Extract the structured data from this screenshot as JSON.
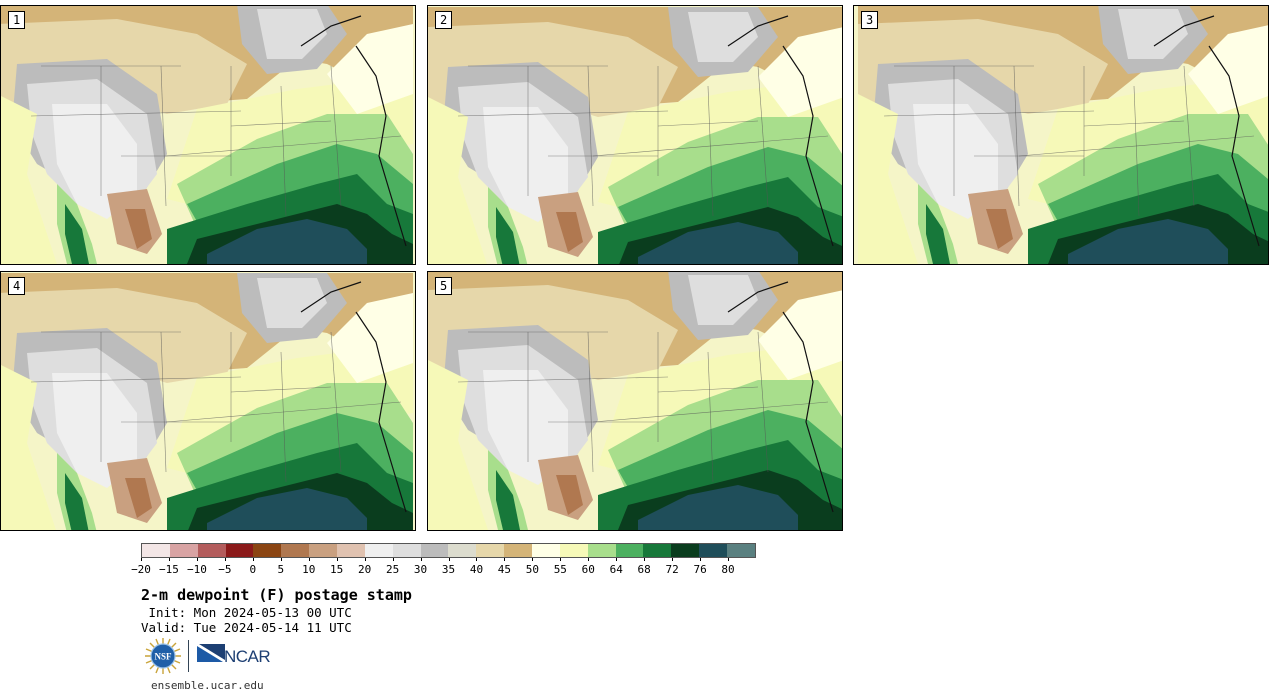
{
  "panels": [
    {
      "label": "1"
    },
    {
      "label": "2"
    },
    {
      "label": "3"
    },
    {
      "label": "4"
    },
    {
      "label": "5"
    }
  ],
  "colorbar": {
    "colors": [
      "#f3e6e6",
      "#d8a3a3",
      "#b35c5c",
      "#8b1a1a",
      "#8b4513",
      "#b07850",
      "#c9a080",
      "#e0c2b0",
      "#efefef",
      "#dedede",
      "#bcbcbc",
      "#dcdcce",
      "#e6d7aa",
      "#d4b478",
      "#ffffe6",
      "#f6f9b8",
      "#a8de8c",
      "#4cb060",
      "#17783a",
      "#0a3d1e",
      "#1f4e5a",
      "#5a8080"
    ],
    "tick_labels": [
      "-20",
      "-15",
      "-10",
      "-5",
      "0",
      "5",
      "10",
      "15",
      "20",
      "25",
      "30",
      "35",
      "40",
      "45",
      "50",
      "55",
      "60",
      "64",
      "68",
      "72",
      "76",
      "80"
    ]
  },
  "title": "2-m dewpoint (F) postage stamp",
  "init": " Init: Mon 2024-05-13 00 UTC",
  "valid": "Valid: Tue 2024-05-14 11 UTC",
  "footer_url": "ensemble.ucar.edu",
  "logos": {
    "nsf_text": "NSF",
    "ncar_text": "NCAR"
  }
}
